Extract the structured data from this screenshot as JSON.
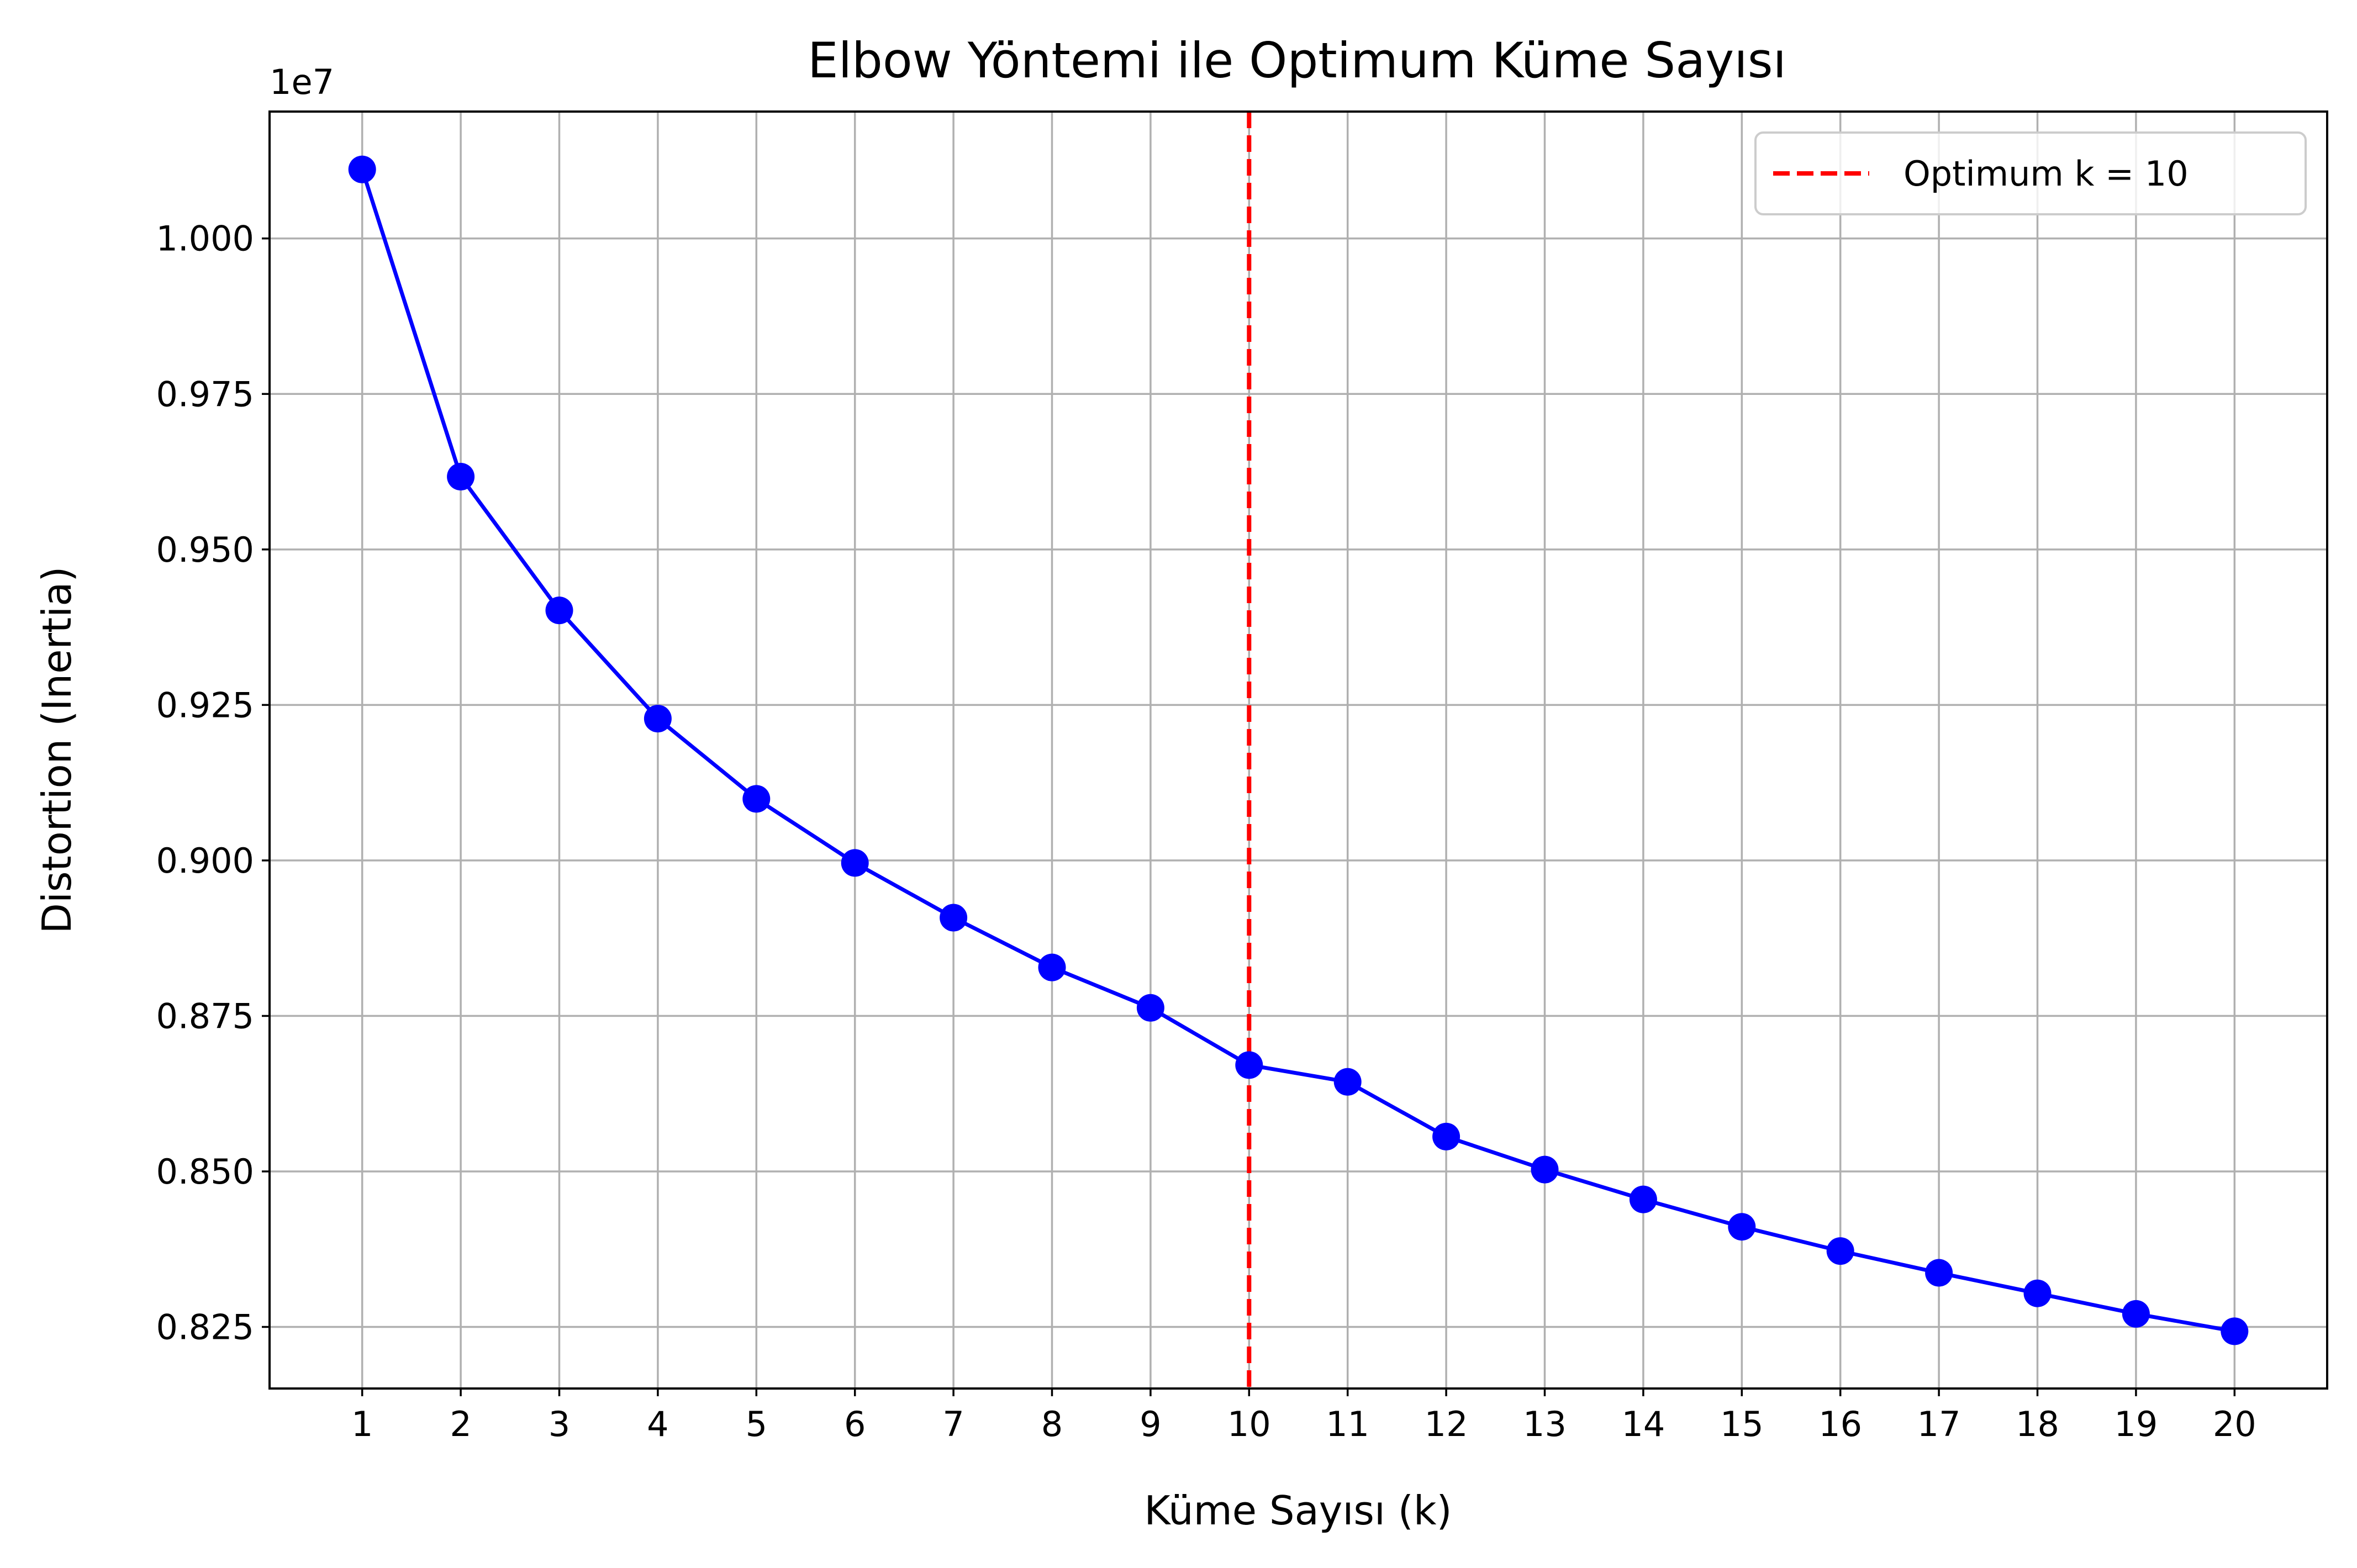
{
  "chart_data": {
    "type": "line",
    "title": "Elbow Yöntemi ile Optimum Küme Sayısı",
    "xlabel": "Küme Sayısı (k)",
    "ylabel": "Distortion (Inertia)",
    "y_offset_label": "1e7",
    "y_scale_factor": 10000000,
    "x": [
      1,
      2,
      3,
      4,
      5,
      6,
      7,
      8,
      9,
      10,
      11,
      12,
      13,
      14,
      15,
      16,
      17,
      18,
      19,
      20
    ],
    "xlim": [
      0.06,
      20.94
    ],
    "ylim": [
      0.8151,
      1.0204
    ],
    "x_ticks": [
      "1",
      "2",
      "3",
      "4",
      "5",
      "6",
      "7",
      "8",
      "9",
      "10",
      "11",
      "12",
      "13",
      "14",
      "15",
      "16",
      "17",
      "18",
      "19",
      "20"
    ],
    "y_ticks": [
      0.825,
      0.85,
      0.875,
      0.9,
      0.925,
      0.95,
      0.975,
      1.0
    ],
    "y_tick_labels": [
      "0.825",
      "0.850",
      "0.875",
      "0.900",
      "0.925",
      "0.950",
      "0.975",
      "1.000"
    ],
    "grid": true,
    "series": [
      {
        "values": [
          1.0111,
          0.9617,
          0.9402,
          0.9228,
          0.9099,
          0.8996,
          0.8908,
          0.8828,
          0.8763,
          0.8671,
          0.8644,
          0.8556,
          0.8503,
          0.8455,
          0.8411,
          0.8372,
          0.8337,
          0.8304,
          0.8271,
          0.8243
        ],
        "color": "#0000ff",
        "marker": "circle"
      }
    ],
    "vline": {
      "x": 10,
      "color": "#ff0000",
      "style": "dashed",
      "label": "Optimum k = 10"
    },
    "legend": {
      "position": "top-right",
      "entries": [
        "Optimum k = 10"
      ]
    }
  },
  "colors": {
    "series": "#0000ff",
    "optimum_line": "#ff0000",
    "grid": "#b0b0b0",
    "axes": "#000000",
    "background": "#ffffff"
  }
}
